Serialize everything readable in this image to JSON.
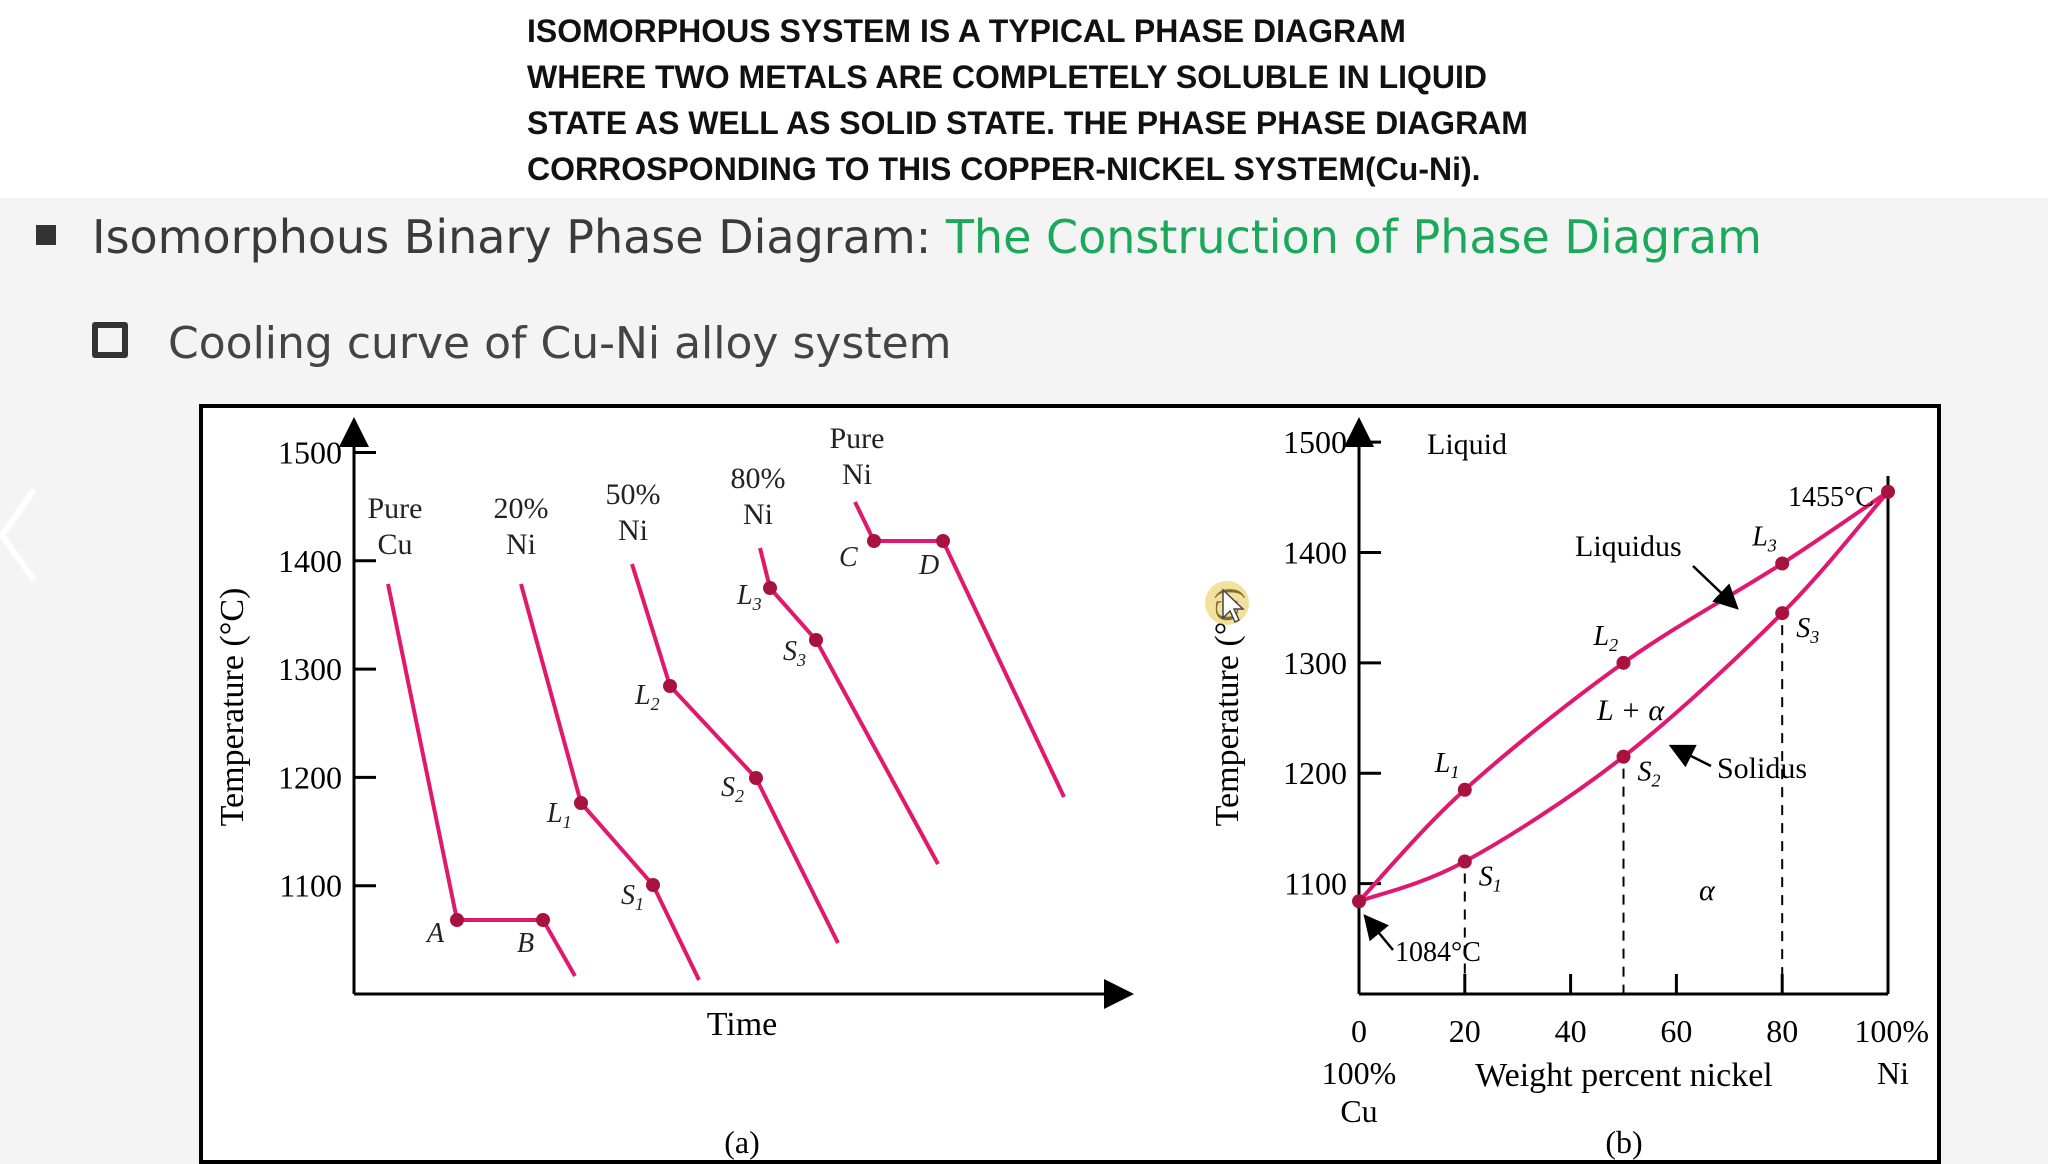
{
  "caption": {
    "line1": "ISOMORPHOUS SYSTEM IS A TYPICAL PHASE DIAGRAM",
    "line2": "WHERE TWO METALS ARE COMPLETELY SOLUBLE IN LIQUID",
    "line3": "STATE AS WELL AS SOLID STATE.  THE PHASE PHASE DIAGRAM",
    "line4": "CORROSPONDING TO THIS COPPER-NICKEL SYSTEM(Cu-Ni)."
  },
  "slide": {
    "heading_main": "Isomorphous Binary Phase Diagram: ",
    "heading_accent": "The Construction of Phase Diagram",
    "subheading": "Cooling curve of Cu-Ni alloy system"
  },
  "colors": {
    "accent": "#1aa85a",
    "curve": "#e0186e",
    "point": "#a8123e"
  },
  "chart_data": [
    {
      "type": "line",
      "panel_label": "(a)",
      "xlabel": "Time",
      "ylabel": "Temperature (°C)",
      "ylim": [
        1000,
        1530
      ],
      "yticks": [
        1100,
        1200,
        1300,
        1400,
        1500
      ],
      "series_labels": [
        {
          "lines": [
            "Pure",
            "Cu"
          ]
        },
        {
          "lines": [
            "20%",
            "Ni"
          ]
        },
        {
          "lines": [
            "50%",
            "Ni"
          ]
        },
        {
          "lines": [
            "80%",
            "Ni"
          ]
        },
        {
          "lines": [
            "Pure",
            "Ni"
          ]
        }
      ],
      "point_labels": [
        "A",
        "B",
        "L",
        "S",
        "L",
        "S",
        "L",
        "S",
        "C",
        "D"
      ],
      "label_subscripts": [
        "1",
        "1",
        "2",
        "2",
        "3",
        "3"
      ],
      "key_temperatures": {
        "pure_cu_plateau": 1084,
        "pure_ni_plateau": 1455
      }
    },
    {
      "type": "line",
      "panel_label": "(b)",
      "xlabel": "Weight percent nickel",
      "ylabel": "Temperature (°C)",
      "xlim": [
        0,
        100
      ],
      "ylim": [
        1000,
        1520
      ],
      "xticks": [
        0,
        20,
        40,
        60,
        80
      ],
      "xtick_last": "100%",
      "yticks": [
        1100,
        1200,
        1300,
        1400,
        1500
      ],
      "x_left_label": [
        "100%",
        "Cu"
      ],
      "x_right_label": "Ni",
      "series": [
        {
          "name": "Liquidus",
          "x": [
            0,
            20,
            50,
            80,
            100
          ],
          "y": [
            1084,
            1185,
            1300,
            1390,
            1455
          ]
        },
        {
          "name": "Solidus",
          "x": [
            0,
            20,
            50,
            80,
            100
          ],
          "y": [
            1084,
            1120,
            1215,
            1345,
            1455
          ]
        }
      ],
      "points": [
        {
          "label": "L",
          "sub": "1",
          "x": 20,
          "y": 1185
        },
        {
          "label": "S",
          "sub": "1",
          "x": 20,
          "y": 1120
        },
        {
          "label": "L",
          "sub": "2",
          "x": 50,
          "y": 1300
        },
        {
          "label": "S",
          "sub": "2",
          "x": 50,
          "y": 1215
        },
        {
          "label": "L",
          "sub": "3",
          "x": 80,
          "y": 1390
        },
        {
          "label": "S",
          "sub": "3",
          "x": 80,
          "y": 1345
        }
      ],
      "regions": [
        "Liquid",
        "L + α",
        "α"
      ],
      "annotations": [
        "1455°C",
        "1084°C",
        "Liquidus",
        "Solidus"
      ]
    }
  ]
}
